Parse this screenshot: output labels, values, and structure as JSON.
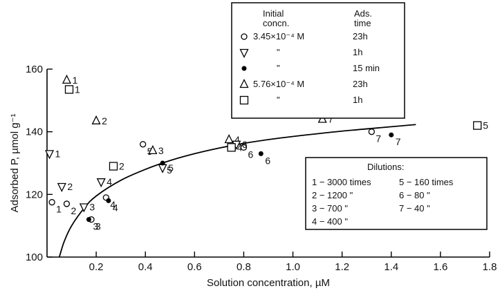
{
  "chart_data": {
    "type": "scatter",
    "xlabel": "Solution concentration, µM",
    "ylabel": "Adsorbed P, µmol g⁻¹",
    "xlim": [
      0,
      1.8
    ],
    "ylim": [
      100,
      160
    ],
    "xticks": [
      {
        "v": 0.2,
        "label": "0.2"
      },
      {
        "v": 0.4,
        "label": "0.4"
      },
      {
        "v": 0.6,
        "label": "0.6"
      },
      {
        "v": 0.8,
        "label": "0.8"
      },
      {
        "v": 1.0,
        "label": "1.0"
      },
      {
        "v": 1.2,
        "label": "1.2"
      },
      {
        "v": 1.4,
        "label": "1.4"
      },
      {
        "v": 1.6,
        "label": "1.6"
      },
      {
        "v": 1.8,
        "label": "1.8"
      }
    ],
    "yticks": [
      {
        "v": 100,
        "label": "100"
      },
      {
        "v": 120,
        "label": "120"
      },
      {
        "v": 140,
        "label": "140"
      },
      {
        "v": 160,
        "label": "160"
      }
    ],
    "legend": {
      "header_concn": "Initial concn.",
      "header_time": "Ads. time",
      "entries": [
        {
          "marker": "circle",
          "concn": "3.45×10⁻⁴ M",
          "time": "23h"
        },
        {
          "marker": "triangle-down",
          "concn": "\"",
          "time": "1h"
        },
        {
          "marker": "dot",
          "concn": "\"",
          "time": "15 min"
        },
        {
          "marker": "triangle-up",
          "concn": "5.76×10⁻⁴ M",
          "time": "23h"
        },
        {
          "marker": "square",
          "concn": "\"",
          "time": "1h"
        }
      ]
    },
    "dilutions": {
      "title": "Dilutions:",
      "rows": [
        {
          "left": "1 − 3000 times",
          "right": "5 − 160 times"
        },
        {
          "left": "2 − 1200  \"",
          "right": "6 − 80  \""
        },
        {
          "left": "3 − 700  \"",
          "right": "7 − 40  \""
        },
        {
          "left": "4 − 400  \"",
          "right": ""
        }
      ]
    },
    "curve": [
      [
        0.05,
        100
      ],
      [
        0.07,
        105
      ],
      [
        0.1,
        110
      ],
      [
        0.15,
        115.5
      ],
      [
        0.2,
        119.5
      ],
      [
        0.3,
        124.5
      ],
      [
        0.4,
        128
      ],
      [
        0.5,
        130.8
      ],
      [
        0.6,
        133
      ],
      [
        0.7,
        134.8
      ],
      [
        0.8,
        136.3
      ],
      [
        0.9,
        137.5
      ],
      [
        1.0,
        138.5
      ],
      [
        1.2,
        140.2
      ],
      [
        1.4,
        141.6
      ],
      [
        1.5,
        142.3
      ]
    ],
    "series": [
      {
        "marker": "circle",
        "points": [
          {
            "x": 0.02,
            "y": 117.5,
            "label": "1"
          },
          {
            "x": 0.08,
            "y": 117,
            "label": "2"
          },
          {
            "x": 0.18,
            "y": 112,
            "label": "3"
          },
          {
            "x": 0.24,
            "y": 119,
            "label": "4"
          },
          {
            "x": 0.39,
            "y": 136,
            "label": "5"
          },
          {
            "x": 0.8,
            "y": 135,
            "label": "6"
          },
          {
            "x": 1.32,
            "y": 140,
            "label": "7"
          }
        ]
      },
      {
        "marker": "triangle-down",
        "points": [
          {
            "x": 0.06,
            "y": 122.5,
            "label": "2"
          },
          {
            "x": 0.15,
            "y": 116,
            "label": "3"
          },
          {
            "x": 0.47,
            "y": 128.5,
            "label": "5"
          }
        ]
      },
      {
        "marker": "dot",
        "points": [
          {
            "x": 0.17,
            "y": 112,
            "label": "3"
          },
          {
            "x": 0.25,
            "y": 118,
            "label": "4"
          },
          {
            "x": 0.47,
            "y": 130,
            "label": "5"
          },
          {
            "x": 0.87,
            "y": 133,
            "label": "6"
          },
          {
            "x": 1.4,
            "y": 139,
            "label": "7"
          }
        ]
      },
      {
        "marker": "triangle-up",
        "points": [
          {
            "x": 0.08,
            "y": 156.5,
            "label": "1"
          },
          {
            "x": 0.2,
            "y": 143.5,
            "label": "2"
          },
          {
            "x": 0.43,
            "y": 134,
            "label": "3"
          },
          {
            "x": 0.74,
            "y": 137.5,
            "label": "4"
          },
          {
            "x": 1.12,
            "y": 144,
            "label": "7"
          }
        ]
      },
      {
        "marker": "triangle-down",
        "points": [
          {
            "x": 0.01,
            "y": 133,
            "label": "1"
          },
          {
            "x": 0.22,
            "y": 124,
            "label": "4"
          },
          {
            "x": 0.77,
            "y": 136,
            "label": "6"
          }
        ]
      },
      {
        "marker": "square",
        "points": [
          {
            "x": 0.09,
            "y": 153.5,
            "label": "1"
          },
          {
            "x": 0.27,
            "y": 129,
            "label": "2"
          },
          {
            "x": 0.75,
            "y": 135,
            "label": "4"
          },
          {
            "x": 1.75,
            "y": 142,
            "label": "5"
          }
        ]
      }
    ]
  }
}
